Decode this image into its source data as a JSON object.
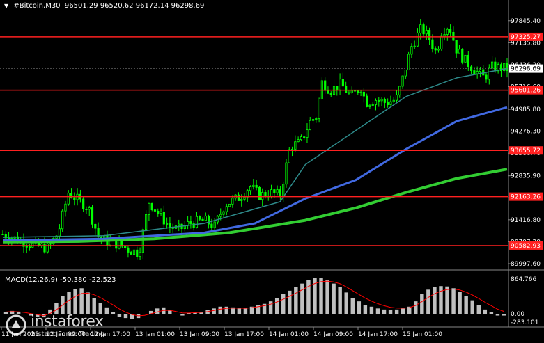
{
  "header": {
    "symbol": "#Bitcoin,M30",
    "open": "96501.29",
    "high": "96520.62",
    "low": "96172.14",
    "close": "96298.69"
  },
  "macd": {
    "label": "MACD(12,26,9)",
    "main": "-50.380",
    "signal": "-22.523",
    "axis": [
      "864.766",
      "0.00",
      "-283.101"
    ]
  },
  "price_axis": {
    "ticks": [
      "97845.40",
      "97135.80",
      "96426.20",
      "95716.60",
      "94985.80",
      "94276.30",
      "93566.70",
      "92835.90",
      "92126.40",
      "91416.80",
      "90707.20",
      "89997.60"
    ],
    "current_price": "96298.69"
  },
  "levels": [
    {
      "label": "97325.27",
      "price": 97325.27
    },
    {
      "label": "95601.26",
      "price": 95601.26
    },
    {
      "label": "93655.72",
      "price": 93655.72
    },
    {
      "label": "92163.26",
      "price": 92163.26
    },
    {
      "label": "90582.93",
      "price": 90582.93
    }
  ],
  "time_axis": [
    "11 Jan 2025",
    "12 Jan 09:00",
    "12 Jan 17:00",
    "13 Jan 01:00",
    "13 Jan 09:00",
    "13 Jan 17:00",
    "14 Jan 01:00",
    "14 Jan 09:00",
    "14 Jan 17:00",
    "15 Jan 01:00"
  ],
  "watermark": {
    "name": "instaforex",
    "tagline": "Instant Forex Trading"
  },
  "colors": {
    "background": "#000000",
    "candle": "#00ff00",
    "level": "#ff2020",
    "ma_fast": "#2e8b8b",
    "ma_mid": "#4169e1",
    "ma_slow": "#32cd32",
    "macd_hist": "#c0c0c0",
    "macd_signal": "#ff0000",
    "text": "#ffffff"
  },
  "chart_data": {
    "type": "candlestick",
    "price_range": [
      89997.6,
      98200
    ],
    "close_path": [
      [
        0,
        90950
      ],
      [
        0.03,
        90780
      ],
      [
        0.06,
        90600
      ],
      [
        0.09,
        90500
      ],
      [
        0.11,
        91000
      ],
      [
        0.13,
        92300
      ],
      [
        0.15,
        92050
      ],
      [
        0.17,
        91800
      ],
      [
        0.19,
        90850
      ],
      [
        0.21,
        90700
      ],
      [
        0.23,
        90620
      ],
      [
        0.25,
        90450
      ],
      [
        0.27,
        90350
      ],
      [
        0.29,
        92000
      ],
      [
        0.31,
        91600
      ],
      [
        0.33,
        91200
      ],
      [
        0.35,
        91100
      ],
      [
        0.37,
        91300
      ],
      [
        0.4,
        91400
      ],
      [
        0.42,
        91200
      ],
      [
        0.44,
        91900
      ],
      [
        0.47,
        92150
      ],
      [
        0.49,
        92500
      ],
      [
        0.51,
        92200
      ],
      [
        0.53,
        92300
      ],
      [
        0.55,
        92200
      ],
      [
        0.57,
        93800
      ],
      [
        0.59,
        93900
      ],
      [
        0.61,
        94600
      ],
      [
        0.625,
        94800
      ],
      [
        0.63,
        95900
      ],
      [
        0.65,
        95600
      ],
      [
        0.67,
        95800
      ],
      [
        0.69,
        95400
      ],
      [
        0.71,
        95700
      ],
      [
        0.72,
        95200
      ],
      [
        0.74,
        95300
      ],
      [
        0.76,
        95200
      ],
      [
        0.78,
        95300
      ],
      [
        0.79,
        95800
      ],
      [
        0.81,
        97000
      ],
      [
        0.83,
        97600
      ],
      [
        0.845,
        97300
      ],
      [
        0.86,
        96800
      ],
      [
        0.87,
        97500
      ],
      [
        0.885,
        97700
      ],
      [
        0.9,
        96900
      ],
      [
        0.92,
        96500
      ],
      [
        0.94,
        96200
      ],
      [
        0.955,
        96000
      ],
      [
        0.97,
        96350
      ],
      [
        1.0,
        96298.69
      ]
    ],
    "ma_fast": [
      [
        0,
        90850
      ],
      [
        0.2,
        90900
      ],
      [
        0.4,
        91300
      ],
      [
        0.55,
        92000
      ],
      [
        0.6,
        93200
      ],
      [
        0.7,
        94300
      ],
      [
        0.8,
        95400
      ],
      [
        0.9,
        96000
      ],
      [
        1.0,
        96300
      ]
    ],
    "ma_mid": [
      [
        0,
        90750
      ],
      [
        0.2,
        90800
      ],
      [
        0.4,
        91000
      ],
      [
        0.5,
        91300
      ],
      [
        0.6,
        92100
      ],
      [
        0.7,
        92700
      ],
      [
        0.8,
        93700
      ],
      [
        0.9,
        94600
      ],
      [
        1.0,
        95050
      ]
    ],
    "ma_slow": [
      [
        0,
        90700
      ],
      [
        0.15,
        90720
      ],
      [
        0.3,
        90800
      ],
      [
        0.45,
        91000
      ],
      [
        0.6,
        91400
      ],
      [
        0.7,
        91800
      ],
      [
        0.8,
        92300
      ],
      [
        0.9,
        92750
      ],
      [
        1.0,
        93050
      ]
    ],
    "macd_hist": [
      0.05,
      0.08,
      0.05,
      0.0,
      -0.05,
      -0.08,
      -0.1,
      0.12,
      0.3,
      0.5,
      0.62,
      0.7,
      0.72,
      0.6,
      0.45,
      0.3,
      0.18,
      0.05,
      -0.08,
      -0.12,
      -0.15,
      -0.12,
      -0.02,
      0.08,
      0.15,
      0.18,
      0.1,
      0.0,
      -0.05,
      0.02,
      0.05,
      0.05,
      0.1,
      0.15,
      0.2,
      0.2,
      0.18,
      0.15,
      0.15,
      0.2,
      0.25,
      0.28,
      0.35,
      0.45,
      0.55,
      0.65,
      0.75,
      0.85,
      0.95,
      1.0,
      1.0,
      0.95,
      0.85,
      0.75,
      0.6,
      0.45,
      0.35,
      0.25,
      0.2,
      0.15,
      0.12,
      0.1,
      0.12,
      0.15,
      0.2,
      0.35,
      0.55,
      0.68,
      0.75,
      0.78,
      0.77,
      0.72,
      0.62,
      0.5,
      0.38,
      0.25,
      0.12,
      0.05,
      -0.05,
      -0.05
    ]
  }
}
